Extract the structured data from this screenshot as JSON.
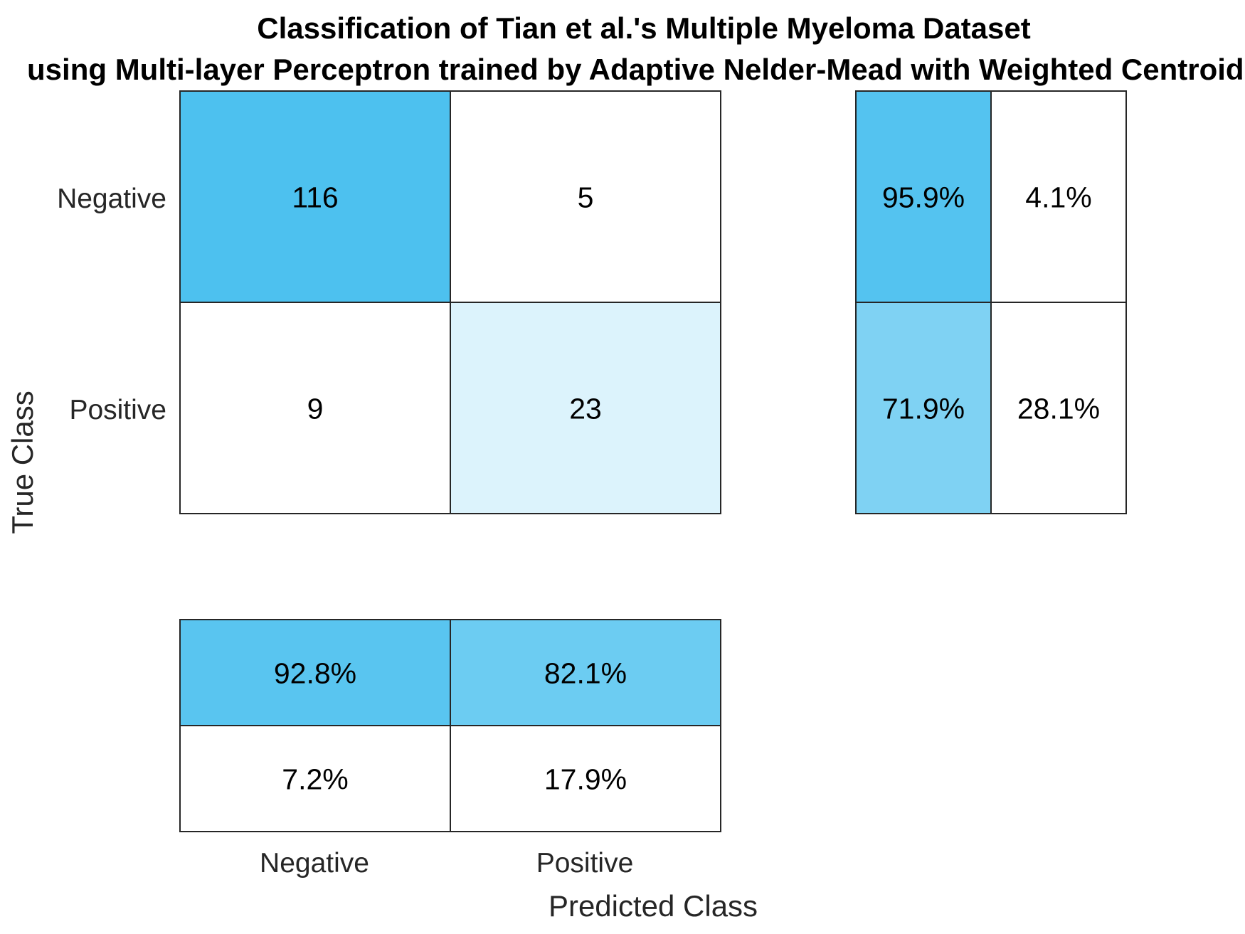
{
  "chart_data": {
    "type": "heatmap",
    "title": "Classification of Tian et al.'s Multiple Myeloma Dataset",
    "subtitle": "using Multi-layer Perceptron trained by Adaptive Nelder-Mead with Weighted Centroids",
    "xlabel": "Predicted Class",
    "ylabel": "True Class",
    "classes": [
      "Negative",
      "Positive"
    ],
    "confusion_matrix": [
      [
        116,
        5
      ],
      [
        9,
        23
      ]
    ],
    "row_summary": [
      [
        "95.9%",
        "4.1%"
      ],
      [
        "71.9%",
        "28.1%"
      ]
    ],
    "row_summary_values": [
      [
        95.9,
        4.1
      ],
      [
        71.9,
        28.1
      ]
    ],
    "column_summary": [
      [
        "92.8%",
        "82.1%"
      ],
      [
        "7.2%",
        "17.9%"
      ]
    ],
    "column_summary_values": [
      [
        92.8,
        82.1
      ],
      [
        7.2,
        17.9
      ]
    ],
    "colors": {
      "accent": "#00A6E8",
      "border": "#262626",
      "background": "#FFFFFF"
    }
  }
}
